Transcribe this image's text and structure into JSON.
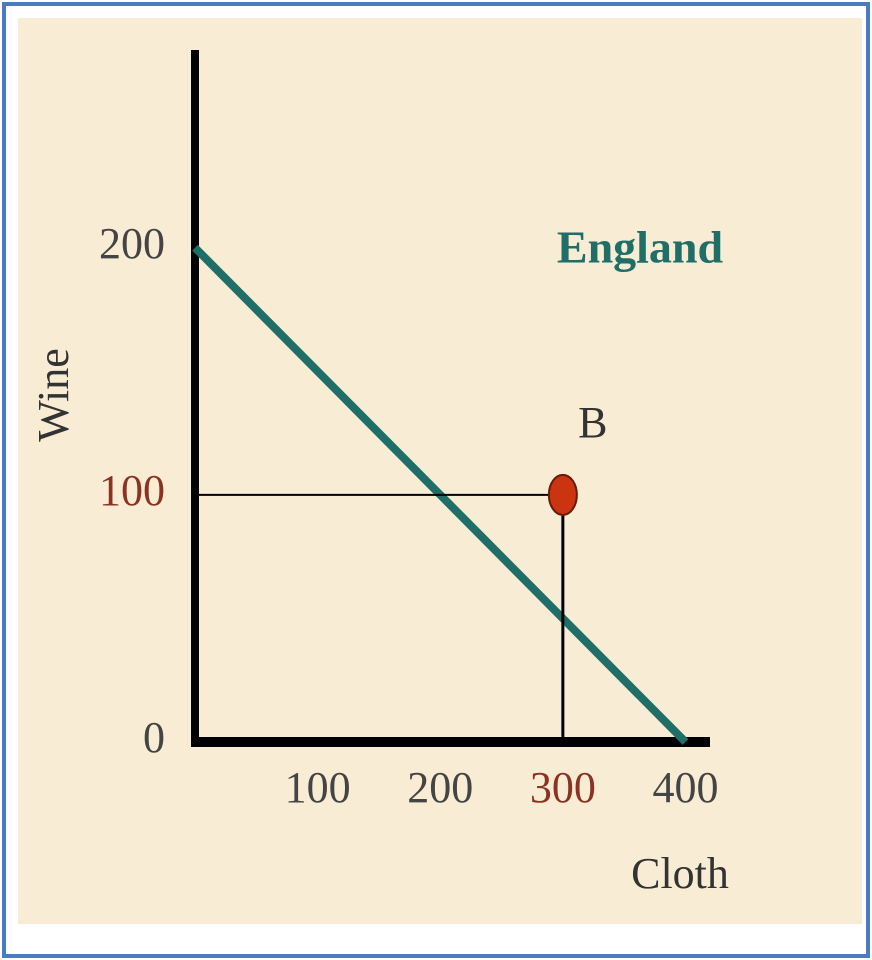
{
  "chart_data": {
    "type": "line",
    "annotation": "England",
    "x_label": "Cloth",
    "y_label": "Wine",
    "xlim": [
      0,
      420
    ],
    "ylim": [
      0,
      280
    ],
    "xticks": [
      100,
      200,
      300,
      400
    ],
    "yticks": [
      0,
      100,
      200
    ],
    "highlight_color": "#8b3322",
    "series": [
      {
        "name": "England",
        "color": "#1f6e68",
        "x": [
          0,
          400
        ],
        "values": [
          200,
          0
        ]
      },
      {
        "name": "B",
        "color": "#cc3311",
        "x": [
          300
        ],
        "values": [
          100
        ],
        "marker": true
      }
    ]
  }
}
